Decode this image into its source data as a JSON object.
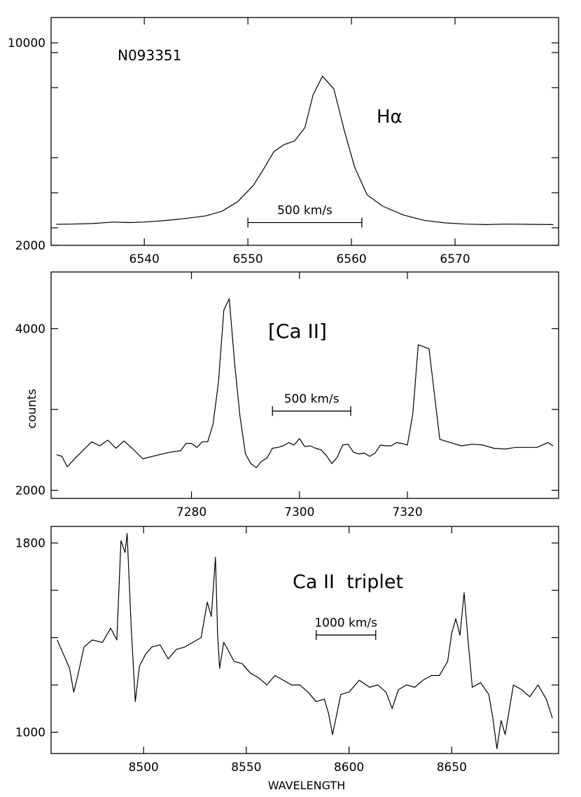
{
  "chart_data": [
    {
      "type": "line",
      "id": "halpha",
      "object_name": "N093351",
      "line_label": "Hα",
      "xlim": [
        6531,
        6580
      ],
      "ylim": [
        2000,
        11000
      ],
      "x_ticks": [
        6540,
        6550,
        6560,
        6570
      ],
      "x_tick_labels": [
        "6540",
        "6550",
        "6560",
        "6570"
      ],
      "y_ticks": [
        2000,
        10000
      ],
      "y_tick_labels": [
        "2000",
        "10000"
      ],
      "scale_bar": {
        "label": "500 km/s",
        "x0": 6550,
        "x1": 6561,
        "y": 2900
      },
      "series": [
        {
          "x": [
            6531.5,
            6533,
            6535,
            6537,
            6538.5,
            6540,
            6542,
            6544,
            6546,
            6547.5,
            6549,
            6550.5,
            6551.5,
            6552.5,
            6553.5,
            6554.5,
            6555.5,
            6556.3,
            6557.2,
            6558.3,
            6559.3,
            6560.3,
            6561.5,
            6563,
            6565,
            6567,
            6569,
            6571,
            6573,
            6575,
            6577,
            6579.5
          ],
          "y": [
            2830,
            2840,
            2860,
            2920,
            2900,
            2920,
            2980,
            3060,
            3170,
            3350,
            3720,
            4350,
            5000,
            5700,
            5980,
            6120,
            6650,
            7950,
            8680,
            8180,
            6550,
            5100,
            4000,
            3550,
            3200,
            2990,
            2890,
            2840,
            2820,
            2840,
            2830,
            2820
          ]
        }
      ]
    },
    {
      "type": "line",
      "id": "caii_forbidden",
      "line_label": "[Ca II]",
      "ylabel": "counts",
      "xlim": [
        7254,
        7348
      ],
      "ylim": [
        1900,
        4700
      ],
      "x_ticks": [
        7280,
        7300,
        7320
      ],
      "x_tick_labels": [
        "7280",
        "7300",
        "7320"
      ],
      "y_ticks": [
        2000,
        3000,
        4000
      ],
      "y_tick_labels": [
        "2000",
        "",
        "4000"
      ],
      "scale_bar": {
        "label": "500 km/s",
        "x0": 7295,
        "x1": 7309.5,
        "y": 2980
      },
      "series": [
        {
          "x": [
            7255,
            7256,
            7257,
            7258.5,
            7260,
            7261.5,
            7263,
            7264.5,
            7266,
            7267.5,
            7269,
            7271,
            7274,
            7276,
            7278,
            7279,
            7280,
            7281,
            7282,
            7283,
            7284,
            7285,
            7286,
            7287,
            7288,
            7289,
            7290,
            7291,
            7292,
            7293,
            7294,
            7295,
            7296,
            7297,
            7298,
            7299,
            7300,
            7301,
            7302,
            7303,
            7304,
            7305,
            7306,
            7307,
            7308,
            7309,
            7310,
            7311,
            7312,
            7313,
            7314,
            7315,
            7316,
            7317,
            7318,
            7319,
            7320,
            7321,
            7322,
            7324,
            7326,
            7328,
            7330,
            7332,
            7334,
            7336,
            7338,
            7340,
            7342,
            7344,
            7346,
            7347
          ],
          "y": [
            2440,
            2420,
            2290,
            2400,
            2500,
            2600,
            2550,
            2620,
            2520,
            2610,
            2520,
            2390,
            2440,
            2470,
            2490,
            2580,
            2580,
            2530,
            2600,
            2600,
            2820,
            3340,
            4230,
            4370,
            3570,
            2910,
            2450,
            2330,
            2280,
            2360,
            2400,
            2520,
            2530,
            2550,
            2590,
            2560,
            2640,
            2540,
            2550,
            2520,
            2500,
            2430,
            2330,
            2410,
            2560,
            2570,
            2470,
            2450,
            2460,
            2420,
            2460,
            2560,
            2550,
            2550,
            2590,
            2580,
            2560,
            2950,
            3800,
            3750,
            2630,
            2590,
            2550,
            2570,
            2560,
            2520,
            2510,
            2530,
            2530,
            2530,
            2590,
            2550
          ]
        }
      ]
    },
    {
      "type": "line",
      "id": "caii_triplet",
      "line_label": "Ca II  triplet",
      "xlabel": "WAVELENGTH",
      "xlim": [
        8455,
        8702
      ],
      "ylim": [
        910,
        1870
      ],
      "x_ticks": [
        8500,
        8550,
        8600,
        8650
      ],
      "x_tick_labels": [
        "8500",
        "8550",
        "8600",
        "8650"
      ],
      "y_ticks": [
        1000,
        1200,
        1400,
        1600,
        1800
      ],
      "y_tick_labels": [
        "1000",
        "",
        "",
        "",
        "1800"
      ],
      "scale_bar": {
        "label": "1000 km/s",
        "x0": 8584,
        "x1": 8613,
        "y": 1411
      },
      "series": [
        {
          "x": [
            8458,
            8461,
            8464,
            8466,
            8468,
            8471,
            8475,
            8480,
            8484,
            8487,
            8489,
            8491,
            8492,
            8494,
            8496,
            8498,
            8501,
            8504,
            8508,
            8512,
            8516,
            8520,
            8524,
            8528,
            8531,
            8533,
            8535,
            8536,
            8537,
            8539,
            8541,
            8544,
            8548,
            8552,
            8556,
            8560,
            8564,
            8568,
            8572,
            8576,
            8580,
            8584,
            8588,
            8590,
            8592,
            8596,
            8600,
            8605,
            8610,
            8614,
            8618,
            8621,
            8624,
            8628,
            8632,
            8636,
            8640,
            8644,
            8648,
            8650,
            8652,
            8654,
            8656,
            8658,
            8660,
            8664,
            8668,
            8670,
            8672,
            8674,
            8676,
            8680,
            8684,
            8688,
            8692,
            8696,
            8699
          ],
          "y": [
            1390,
            1330,
            1270,
            1170,
            1240,
            1360,
            1390,
            1380,
            1440,
            1390,
            1810,
            1760,
            1840,
            1440,
            1130,
            1280,
            1330,
            1360,
            1370,
            1310,
            1350,
            1360,
            1380,
            1400,
            1550,
            1490,
            1740,
            1420,
            1270,
            1380,
            1350,
            1300,
            1290,
            1250,
            1230,
            1200,
            1240,
            1220,
            1200,
            1200,
            1170,
            1130,
            1140,
            1080,
            990,
            1160,
            1170,
            1220,
            1190,
            1200,
            1170,
            1100,
            1180,
            1200,
            1190,
            1220,
            1240,
            1240,
            1300,
            1420,
            1480,
            1410,
            1590,
            1380,
            1190,
            1210,
            1160,
            1060,
            930,
            1050,
            990,
            1200,
            1180,
            1150,
            1200,
            1140,
            1060
          ]
        }
      ]
    }
  ]
}
